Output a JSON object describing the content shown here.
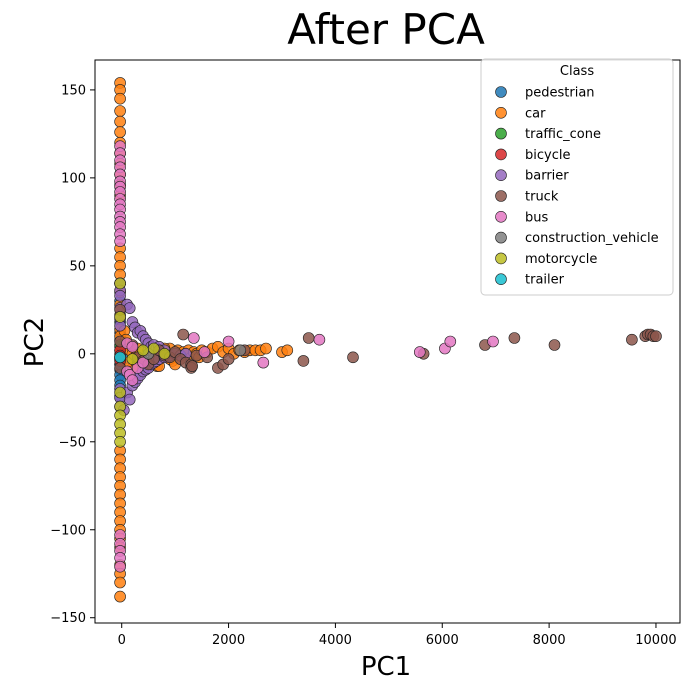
{
  "chart_data": {
    "type": "scatter",
    "title": "After PCA",
    "xlabel": "PC1",
    "ylabel": "PC2",
    "xlim": [
      -500,
      10450
    ],
    "ylim": [
      -153,
      167
    ],
    "xticks": [
      0,
      2000,
      4000,
      6000,
      8000,
      10000
    ],
    "yticks": [
      -150,
      -100,
      -50,
      0,
      50,
      100,
      150
    ],
    "grid": false,
    "legend": {
      "title": "Class",
      "placement": "top-right"
    },
    "series": [
      {
        "name": "pedestrian",
        "color": "#1f77b4",
        "points": [
          [
            -30,
            30
          ],
          [
            -30,
            18
          ],
          [
            -30,
            12
          ],
          [
            -30,
            8
          ],
          [
            -30,
            4
          ],
          [
            -30,
            0
          ],
          [
            -30,
            -3
          ],
          [
            -30,
            -6
          ],
          [
            -30,
            -9
          ],
          [
            -30,
            -12
          ],
          [
            -30,
            -15
          ],
          [
            -30,
            -18
          ],
          [
            -30,
            -24
          ],
          [
            -30,
            -6
          ],
          [
            40,
            -3
          ]
        ]
      },
      {
        "name": "car",
        "color": "#ff7f0e",
        "points": [
          [
            -30,
            154
          ],
          [
            -30,
            150
          ],
          [
            -30,
            145
          ],
          [
            -30,
            138
          ],
          [
            -30,
            132
          ],
          [
            -30,
            126
          ],
          [
            -30,
            120
          ],
          [
            -30,
            114
          ],
          [
            -30,
            108
          ],
          [
            -30,
            102
          ],
          [
            -30,
            96
          ],
          [
            -30,
            90
          ],
          [
            -30,
            60
          ],
          [
            -30,
            55
          ],
          [
            -30,
            50
          ],
          [
            -30,
            45
          ],
          [
            -30,
            40
          ],
          [
            -30,
            35
          ],
          [
            -30,
            28
          ],
          [
            -30,
            22
          ],
          [
            -30,
            14
          ],
          [
            -30,
            10
          ],
          [
            -30,
            2
          ],
          [
            -30,
            -2
          ],
          [
            -30,
            -55
          ],
          [
            -30,
            -60
          ],
          [
            -30,
            -65
          ],
          [
            -30,
            -70
          ],
          [
            -30,
            -75
          ],
          [
            -30,
            -80
          ],
          [
            -30,
            -85
          ],
          [
            -30,
            -90
          ],
          [
            -30,
            -95
          ],
          [
            -30,
            -100
          ],
          [
            -30,
            -105
          ],
          [
            -30,
            -110
          ],
          [
            -30,
            -120
          ],
          [
            -30,
            -125
          ],
          [
            -30,
            -130
          ],
          [
            -30,
            -138
          ],
          [
            50,
            13
          ],
          [
            80,
            8
          ],
          [
            120,
            5
          ],
          [
            150,
            2
          ],
          [
            200,
            0
          ],
          [
            250,
            -2
          ],
          [
            300,
            3
          ],
          [
            350,
            -3
          ],
          [
            400,
            1
          ],
          [
            450,
            -5
          ],
          [
            500,
            2
          ],
          [
            550,
            4
          ],
          [
            600,
            -1
          ],
          [
            650,
            3
          ],
          [
            700,
            1
          ],
          [
            750,
            -2
          ],
          [
            800,
            2
          ],
          [
            850,
            0
          ],
          [
            900,
            3
          ],
          [
            950,
            -4
          ],
          [
            1000,
            0
          ],
          [
            1050,
            2
          ],
          [
            1100,
            -1
          ],
          [
            1150,
            1
          ],
          [
            1200,
            0
          ],
          [
            1250,
            2
          ],
          [
            1300,
            -2
          ],
          [
            1350,
            1
          ],
          [
            1400,
            0
          ],
          [
            1450,
            -2
          ],
          [
            1500,
            2
          ],
          [
            1600,
            1
          ],
          [
            1700,
            3
          ],
          [
            1800,
            4
          ],
          [
            1900,
            1
          ],
          [
            2000,
            3
          ],
          [
            2100,
            0
          ],
          [
            2200,
            2
          ],
          [
            2300,
            1
          ],
          [
            2400,
            2
          ],
          [
            2500,
            2
          ],
          [
            2600,
            2
          ],
          [
            2700,
            3
          ],
          [
            3000,
            1
          ],
          [
            3100,
            2
          ],
          [
            660,
            -7
          ],
          [
            400,
            -9
          ],
          [
            300,
            -6
          ],
          [
            200,
            -8
          ],
          [
            100,
            -5
          ],
          [
            550,
            -6
          ],
          [
            700,
            -7
          ],
          [
            800,
            3
          ],
          [
            900,
            -3
          ],
          [
            1000,
            -6
          ]
        ]
      },
      {
        "name": "traffic_cone",
        "color": "#2ca02c",
        "points": [
          [
            -30,
            40
          ],
          [
            -30,
            5
          ],
          [
            -30,
            -3
          ]
        ]
      },
      {
        "name": "bicycle",
        "color": "#d62728",
        "points": [
          [
            -30,
            2
          ],
          [
            -30,
            -1
          ],
          [
            -30,
            -4
          ]
        ]
      },
      {
        "name": "barrier",
        "color": "#9467bd",
        "points": [
          [
            -30,
            40
          ],
          [
            -30,
            36
          ],
          [
            -30,
            33
          ],
          [
            -30,
            26
          ],
          [
            -30,
            20
          ],
          [
            -30,
            16
          ],
          [
            -30,
            -20
          ],
          [
            -30,
            -25
          ],
          [
            -30,
            -30
          ],
          [
            40,
            -32
          ],
          [
            100,
            28
          ],
          [
            150,
            26
          ],
          [
            200,
            18
          ],
          [
            250,
            15
          ],
          [
            300,
            12
          ],
          [
            350,
            13
          ],
          [
            400,
            10
          ],
          [
            450,
            8
          ],
          [
            500,
            6
          ],
          [
            550,
            4
          ],
          [
            600,
            5
          ],
          [
            650,
            3
          ],
          [
            700,
            4
          ],
          [
            800,
            2
          ],
          [
            100,
            -22
          ],
          [
            150,
            -26
          ],
          [
            200,
            -18
          ],
          [
            250,
            -16
          ],
          [
            300,
            -14
          ],
          [
            350,
            -12
          ],
          [
            400,
            -10
          ],
          [
            450,
            -9
          ],
          [
            500,
            -8
          ],
          [
            550,
            -6
          ],
          [
            600,
            -5
          ],
          [
            650,
            -4
          ],
          [
            700,
            -3
          ],
          [
            800,
            -2
          ],
          [
            900,
            -1
          ],
          [
            1000,
            0
          ],
          [
            1100,
            -1
          ],
          [
            1200,
            0
          ]
        ]
      },
      {
        "name": "truck",
        "color": "#8c564b",
        "points": [
          [
            -30,
            25
          ],
          [
            -30,
            7
          ],
          [
            -30,
            -8
          ],
          [
            200,
            5
          ],
          [
            300,
            -2
          ],
          [
            400,
            -4
          ],
          [
            500,
            -6
          ],
          [
            600,
            -3
          ],
          [
            700,
            2
          ],
          [
            800,
            -1
          ],
          [
            900,
            -2
          ],
          [
            1000,
            1
          ],
          [
            1100,
            -3
          ],
          [
            1200,
            -5
          ],
          [
            1300,
            -6
          ],
          [
            1300,
            -8
          ],
          [
            1320,
            -7
          ],
          [
            1150,
            11
          ],
          [
            1400,
            -1
          ],
          [
            1600,
            -2
          ],
          [
            1800,
            -8
          ],
          [
            1900,
            -6
          ],
          [
            2000,
            -3
          ],
          [
            2300,
            2
          ],
          [
            3400,
            -4
          ],
          [
            3500,
            9
          ],
          [
            4330,
            -2
          ],
          [
            5650,
            0
          ],
          [
            6800,
            5
          ],
          [
            7350,
            9
          ],
          [
            8100,
            5
          ],
          [
            9550,
            8
          ],
          [
            9800,
            10
          ],
          [
            9850,
            11
          ],
          [
            9900,
            11
          ],
          [
            9950,
            10
          ],
          [
            10000,
            10
          ]
        ]
      },
      {
        "name": "bus",
        "color": "#e377c2",
        "points": [
          [
            -30,
            118
          ],
          [
            -30,
            114
          ],
          [
            -30,
            110
          ],
          [
            -30,
            106
          ],
          [
            -30,
            102
          ],
          [
            -30,
            98
          ],
          [
            -30,
            95
          ],
          [
            -30,
            92
          ],
          [
            -30,
            88
          ],
          [
            -30,
            85
          ],
          [
            -30,
            82
          ],
          [
            -30,
            78
          ],
          [
            -30,
            75
          ],
          [
            -30,
            72
          ],
          [
            -30,
            68
          ],
          [
            -30,
            64
          ],
          [
            -30,
            -103
          ],
          [
            -30,
            -108
          ],
          [
            -30,
            -112
          ],
          [
            -30,
            -116
          ],
          [
            -30,
            -121
          ],
          [
            100,
            -10
          ],
          [
            150,
            -12
          ],
          [
            200,
            -15
          ],
          [
            100,
            6
          ],
          [
            200,
            4
          ],
          [
            300,
            -8
          ],
          [
            400,
            -5
          ],
          [
            1350,
            9
          ],
          [
            1550,
            1
          ],
          [
            2000,
            7
          ],
          [
            2650,
            -5
          ],
          [
            3700,
            8
          ],
          [
            5580,
            1
          ],
          [
            6050,
            3
          ],
          [
            6150,
            7
          ],
          [
            6950,
            7
          ]
        ]
      },
      {
        "name": "construction_vehicle",
        "color": "#7f7f7f",
        "points": [
          [
            -30,
            -2
          ],
          [
            2220,
            2
          ],
          [
            500,
            0
          ]
        ]
      },
      {
        "name": "motorcycle",
        "color": "#bcbd22",
        "points": [
          [
            -30,
            40
          ],
          [
            -30,
            21
          ],
          [
            -30,
            -22
          ],
          [
            -30,
            -30
          ],
          [
            -30,
            -35
          ],
          [
            -30,
            -40
          ],
          [
            -30,
            -45
          ],
          [
            -30,
            -50
          ],
          [
            200,
            -3
          ],
          [
            400,
            2
          ],
          [
            600,
            3
          ],
          [
            800,
            0
          ]
        ]
      },
      {
        "name": "trailer",
        "color": "#17becf",
        "points": [
          [
            -30,
            -2
          ]
        ]
      }
    ]
  }
}
